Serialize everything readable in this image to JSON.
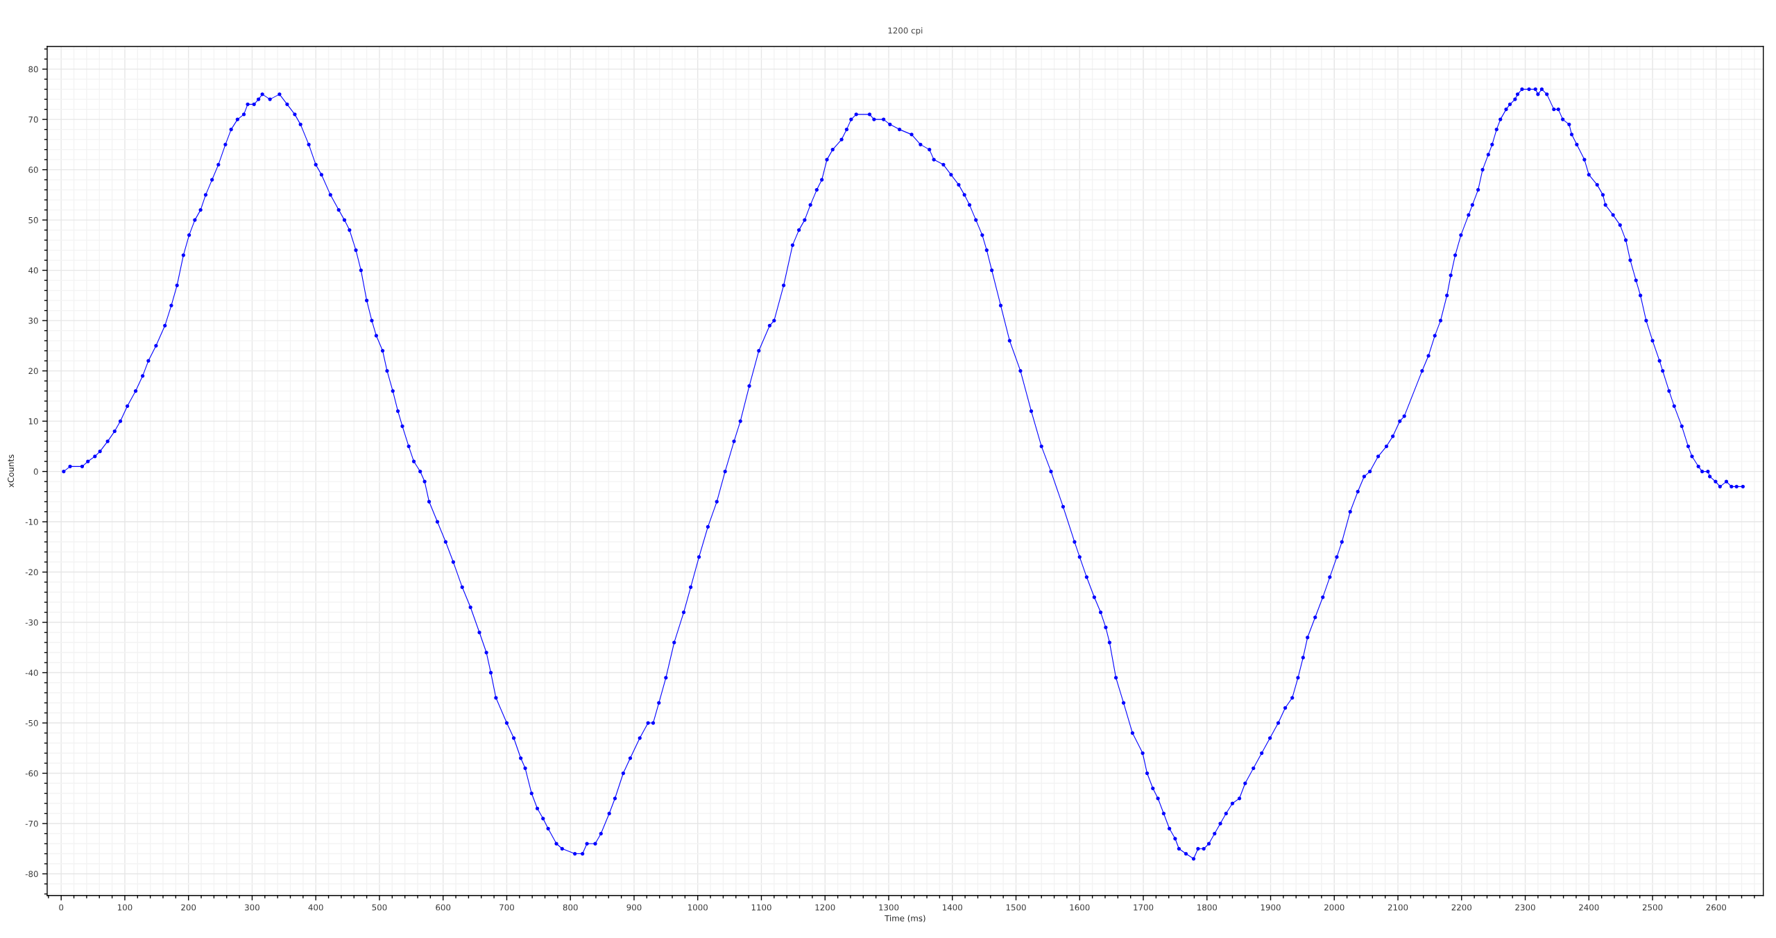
{
  "chart_data": {
    "type": "line",
    "subtitle": "1200 cpi",
    "xlabel": "Time (ms)",
    "ylabel": "xCounts",
    "x": [
      4,
      14,
      33,
      42,
      53,
      61,
      73,
      84,
      93,
      104,
      117,
      128,
      137,
      149,
      163,
      173,
      182,
      192,
      201,
      210,
      219,
      227,
      237,
      247,
      258,
      267,
      277,
      287,
      293,
      303,
      310,
      316,
      328,
      343,
      355,
      367,
      376,
      389,
      400,
      409,
      423,
      436,
      445,
      453,
      463,
      471,
      480,
      488,
      495,
      505,
      512,
      521,
      529,
      536,
      546,
      554,
      564,
      571,
      578,
      591,
      604,
      616,
      630,
      643,
      657,
      668,
      675,
      683,
      700,
      711,
      722,
      729,
      739,
      748,
      757,
      765,
      778,
      787,
      807,
      819,
      826,
      839,
      848,
      861,
      870,
      883,
      894,
      909,
      922,
      930,
      939,
      950,
      963,
      978,
      989,
      1002,
      1016,
      1030,
      1043,
      1057,
      1067,
      1081,
      1096,
      1113,
      1120,
      1135,
      1149,
      1159,
      1168,
      1177,
      1187,
      1195,
      1203,
      1212,
      1226,
      1234,
      1241,
      1249,
      1270,
      1277,
      1292,
      1302,
      1317,
      1336,
      1350,
      1364,
      1371,
      1386,
      1398,
      1410,
      1419,
      1427,
      1437,
      1447,
      1454,
      1462,
      1476,
      1490,
      1507,
      1524,
      1540,
      1555,
      1574,
      1592,
      1600,
      1611,
      1623,
      1633,
      1641,
      1647,
      1657,
      1669,
      1683,
      1699,
      1706,
      1715,
      1723,
      1732,
      1741,
      1750,
      1756,
      1767,
      1779,
      1786,
      1795,
      1803,
      1812,
      1821,
      1830,
      1840,
      1851,
      1860,
      1873,
      1886,
      1899,
      1912,
      1923,
      1934,
      1943,
      1951,
      1958,
      1970,
      1982,
      1993,
      2004,
      2012,
      2025,
      2037,
      2047,
      2056,
      2069,
      2082,
      2092,
      2103,
      2110,
      2138,
      2148,
      2158,
      2167,
      2177,
      2183,
      2190,
      2199,
      2211,
      2217,
      2226,
      2233,
      2242,
      2248,
      2255,
      2261,
      2270,
      2276,
      2284,
      2288,
      2295,
      2306,
      2316,
      2320,
      2326,
      2334,
      2345,
      2352,
      2359,
      2369,
      2373,
      2381,
      2393,
      2400,
      2413,
      2422,
      2426,
      2438,
      2449,
      2458,
      2465,
      2474,
      2481,
      2490,
      2500,
      2511,
      2516,
      2526,
      2534,
      2546,
      2556,
      2562,
      2572,
      2578,
      2587,
      2590,
      2599,
      2606,
      2616,
      2624,
      2632,
      2642
    ],
    "series": [
      {
        "color": "#0000ff",
        "values": [
          0,
          1,
          1,
          2,
          3,
          4,
          6,
          8,
          10,
          13,
          16,
          19,
          22,
          25,
          29,
          33,
          37,
          43,
          47,
          50,
          52,
          55,
          58,
          61,
          65,
          68,
          70,
          71,
          73,
          73,
          74,
          75,
          74,
          75,
          73,
          71,
          69,
          65,
          61,
          59,
          55,
          52,
          50,
          48,
          44,
          40,
          34,
          30,
          27,
          24,
          20,
          16,
          12,
          9,
          5,
          2,
          0,
          -2,
          -6,
          -10,
          -14,
          -18,
          -23,
          -27,
          -32,
          -36,
          -40,
          -45,
          -50,
          -53,
          -57,
          -59,
          -64,
          -67,
          -69,
          -71,
          -74,
          -75,
          -76,
          -76,
          -74,
          -74,
          -72,
          -68,
          -65,
          -60,
          -57,
          -53,
          -50,
          -50,
          -46,
          -41,
          -34,
          -28,
          -23,
          -17,
          -11,
          -6,
          0,
          6,
          10,
          17,
          24,
          29,
          30,
          37,
          45,
          48,
          50,
          53,
          56,
          58,
          62,
          64,
          66,
          68,
          70,
          71,
          71,
          70,
          70,
          69,
          68,
          67,
          65,
          64,
          62,
          61,
          59,
          57,
          55,
          53,
          50,
          47,
          44,
          40,
          33,
          26,
          20,
          12,
          5,
          0,
          -7,
          -14,
          -17,
          -21,
          -25,
          -28,
          -31,
          -34,
          -41,
          -46,
          -52,
          -56,
          -60,
          -63,
          -65,
          -68,
          -71,
          -73,
          -75,
          -76,
          -77,
          -75,
          -75,
          -74,
          -72,
          -70,
          -68,
          -66,
          -65,
          -62,
          -59,
          -56,
          -53,
          -50,
          -47,
          -45,
          -41,
          -37,
          -33,
          -29,
          -25,
          -21,
          -17,
          -14,
          -8,
          -4,
          -1,
          0,
          3,
          5,
          7,
          10,
          11,
          20,
          23,
          27,
          30,
          35,
          39,
          43,
          47,
          51,
          53,
          56,
          60,
          63,
          65,
          68,
          70,
          72,
          73,
          74,
          75,
          76,
          76,
          76,
          75,
          76,
          75,
          72,
          72,
          70,
          69,
          67,
          65,
          62,
          59,
          57,
          55,
          53,
          51,
          49,
          46,
          42,
          38,
          35,
          30,
          26,
          22,
          20,
          16,
          13,
          9,
          5,
          3,
          1,
          0,
          0,
          -1,
          -2,
          -3,
          -2,
          -3,
          -3,
          -3
        ]
      }
    ],
    "marker": "circle",
    "line_style": "solid",
    "grid": true,
    "xlim": [
      -22,
      2674
    ],
    "ylim": [
      -84.3,
      84.5
    ],
    "xticks": [
      0,
      100,
      200,
      300,
      400,
      500,
      600,
      700,
      800,
      900,
      1000,
      1100,
      1200,
      1300,
      1400,
      1500,
      1600,
      1700,
      1800,
      1900,
      2000,
      2100,
      2200,
      2300,
      2400,
      2500,
      2600,
      {
        "value": -20,
        "label": null
      },
      {
        "value": 20,
        "label": null
      },
      {
        "value": 40,
        "label": null
      },
      {
        "value": 60,
        "label": null
      },
      {
        "value": 80,
        "label": null
      },
      {
        "value": 120,
        "label": null
      },
      {
        "value": 140,
        "label": null
      },
      {
        "value": 160,
        "label": null
      },
      {
        "value": 180,
        "label": null
      },
      {
        "value": 220,
        "label": null
      },
      {
        "value": 240,
        "label": null
      },
      {
        "value": 260,
        "label": null
      },
      {
        "value": 280,
        "label": null
      },
      {
        "value": 320,
        "label": null
      },
      {
        "value": 340,
        "label": null
      },
      {
        "value": 360,
        "label": null
      },
      {
        "value": 380,
        "label": null
      },
      {
        "value": 420,
        "label": null
      },
      {
        "value": 440,
        "label": null
      },
      {
        "value": 460,
        "label": null
      },
      {
        "value": 480,
        "label": null
      },
      {
        "value": 520,
        "label": null
      },
      {
        "value": 540,
        "label": null
      },
      {
        "value": 560,
        "label": null
      },
      {
        "value": 580,
        "label": null
      },
      {
        "value": 620,
        "label": null
      },
      {
        "value": 640,
        "label": null
      },
      {
        "value": 660,
        "label": null
      },
      {
        "value": 680,
        "label": null
      },
      {
        "value": 720,
        "label": null
      },
      {
        "value": 740,
        "label": null
      },
      {
        "value": 760,
        "label": null
      },
      {
        "value": 780,
        "label": null
      },
      {
        "value": 820,
        "label": null
      },
      {
        "value": 840,
        "label": null
      },
      {
        "value": 860,
        "label": null
      },
      {
        "value": 880,
        "label": null
      },
      {
        "value": 920,
        "label": null
      },
      {
        "value": 940,
        "label": null
      },
      {
        "value": 960,
        "label": null
      },
      {
        "value": 980,
        "label": null
      },
      {
        "value": 1020,
        "label": null
      },
      {
        "value": 1040,
        "label": null
      },
      {
        "value": 1060,
        "label": null
      },
      {
        "value": 1080,
        "label": null
      },
      {
        "value": 1120,
        "label": null
      },
      {
        "value": 1140,
        "label": null
      },
      {
        "value": 1160,
        "label": null
      },
      {
        "value": 1180,
        "label": null
      },
      {
        "value": 1220,
        "label": null
      },
      {
        "value": 1240,
        "label": null
      },
      {
        "value": 1260,
        "label": null
      },
      {
        "value": 1280,
        "label": null
      },
      {
        "value": 1320,
        "label": null
      },
      {
        "value": 1340,
        "label": null
      },
      {
        "value": 1360,
        "label": null
      },
      {
        "value": 1380,
        "label": null
      },
      {
        "value": 1420,
        "label": null
      },
      {
        "value": 1440,
        "label": null
      },
      {
        "value": 1460,
        "label": null
      },
      {
        "value": 1480,
        "label": null
      },
      {
        "value": 1520,
        "label": null
      },
      {
        "value": 1540,
        "label": null
      },
      {
        "value": 1560,
        "label": null
      },
      {
        "value": 1580,
        "label": null
      },
      {
        "value": 1620,
        "label": null
      },
      {
        "value": 1640,
        "label": null
      },
      {
        "value": 1660,
        "label": null
      },
      {
        "value": 1680,
        "label": null
      },
      {
        "value": 1720,
        "label": null
      },
      {
        "value": 1740,
        "label": null
      },
      {
        "value": 1760,
        "label": null
      },
      {
        "value": 1780,
        "label": null
      },
      {
        "value": 1820,
        "label": null
      },
      {
        "value": 1840,
        "label": null
      },
      {
        "value": 1860,
        "label": null
      },
      {
        "value": 1880,
        "label": null
      },
      {
        "value": 1920,
        "label": null
      },
      {
        "value": 1940,
        "label": null
      },
      {
        "value": 1960,
        "label": null
      },
      {
        "value": 1980,
        "label": null
      },
      {
        "value": 2020,
        "label": null
      },
      {
        "value": 2040,
        "label": null
      },
      {
        "value": 2060,
        "label": null
      },
      {
        "value": 2080,
        "label": null
      },
      {
        "value": 2120,
        "label": null
      },
      {
        "value": 2140,
        "label": null
      },
      {
        "value": 2160,
        "label": null
      },
      {
        "value": 2180,
        "label": null
      },
      {
        "value": 2220,
        "label": null
      },
      {
        "value": 2240,
        "label": null
      },
      {
        "value": 2260,
        "label": null
      },
      {
        "value": 2280,
        "label": null
      },
      {
        "value": 2320,
        "label": null
      },
      {
        "value": 2340,
        "label": null
      },
      {
        "value": 2360,
        "label": null
      },
      {
        "value": 2380,
        "label": null
      },
      {
        "value": 2420,
        "label": null
      },
      {
        "value": 2440,
        "label": null
      },
      {
        "value": 2460,
        "label": null
      },
      {
        "value": 2480,
        "label": null
      },
      {
        "value": 2520,
        "label": null
      },
      {
        "value": 2540,
        "label": null
      },
      {
        "value": 2560,
        "label": null
      },
      {
        "value": 2580,
        "label": null
      },
      {
        "value": 2620,
        "label": null
      },
      {
        "value": 2640,
        "label": null
      },
      {
        "value": 2660,
        "label": null
      }
    ],
    "yticks": [
      -80,
      -70,
      -60,
      -50,
      -40,
      -30,
      -20,
      -10,
      0,
      10,
      20,
      30,
      40,
      50,
      60,
      70,
      80,
      {
        "value": -84,
        "label": null
      },
      {
        "value": -82,
        "label": null
      },
      {
        "value": -78,
        "label": null
      },
      {
        "value": -76,
        "label": null
      },
      {
        "value": -74,
        "label": null
      },
      {
        "value": -72,
        "label": null
      },
      {
        "value": -68,
        "label": null
      },
      {
        "value": -66,
        "label": null
      },
      {
        "value": -64,
        "label": null
      },
      {
        "value": -62,
        "label": null
      },
      {
        "value": -58,
        "label": null
      },
      {
        "value": -56,
        "label": null
      },
      {
        "value": -54,
        "label": null
      },
      {
        "value": -52,
        "label": null
      },
      {
        "value": -48,
        "label": null
      },
      {
        "value": -46,
        "label": null
      },
      {
        "value": -44,
        "label": null
      },
      {
        "value": -42,
        "label": null
      },
      {
        "value": -38,
        "label": null
      },
      {
        "value": -36,
        "label": null
      },
      {
        "value": -34,
        "label": null
      },
      {
        "value": -32,
        "label": null
      },
      {
        "value": -28,
        "label": null
      },
      {
        "value": -26,
        "label": null
      },
      {
        "value": -24,
        "label": null
      },
      {
        "value": -22,
        "label": null
      },
      {
        "value": -18,
        "label": null
      },
      {
        "value": -16,
        "label": null
      },
      {
        "value": -14,
        "label": null
      },
      {
        "value": -12,
        "label": null
      },
      {
        "value": -8,
        "label": null
      },
      {
        "value": -6,
        "label": null
      },
      {
        "value": -4,
        "label": null
      },
      {
        "value": -2,
        "label": null
      },
      {
        "value": 2,
        "label": null
      },
      {
        "value": 4,
        "label": null
      },
      {
        "value": 6,
        "label": null
      },
      {
        "value": 8,
        "label": null
      },
      {
        "value": 12,
        "label": null
      },
      {
        "value": 14,
        "label": null
      },
      {
        "value": 16,
        "label": null
      },
      {
        "value": 18,
        "label": null
      },
      {
        "value": 22,
        "label": null
      },
      {
        "value": 24,
        "label": null
      },
      {
        "value": 26,
        "label": null
      },
      {
        "value": 28,
        "label": null
      },
      {
        "value": 32,
        "label": null
      },
      {
        "value": 34,
        "label": null
      },
      {
        "value": 36,
        "label": null
      },
      {
        "value": 38,
        "label": null
      },
      {
        "value": 42,
        "label": null
      },
      {
        "value": 44,
        "label": null
      },
      {
        "value": 46,
        "label": null
      },
      {
        "value": 48,
        "label": null
      },
      {
        "value": 52,
        "label": null
      },
      {
        "value": 54,
        "label": null
      },
      {
        "value": 56,
        "label": null
      },
      {
        "value": 58,
        "label": null
      },
      {
        "value": 62,
        "label": null
      },
      {
        "value": 64,
        "label": null
      },
      {
        "value": 66,
        "label": null
      },
      {
        "value": 68,
        "label": null
      },
      {
        "value": 72,
        "label": null
      },
      {
        "value": 74,
        "label": null
      },
      {
        "value": 76,
        "label": null
      },
      {
        "value": 78,
        "label": null
      },
      {
        "value": 82,
        "label": null
      },
      {
        "value": 84,
        "label": null
      }
    ]
  }
}
